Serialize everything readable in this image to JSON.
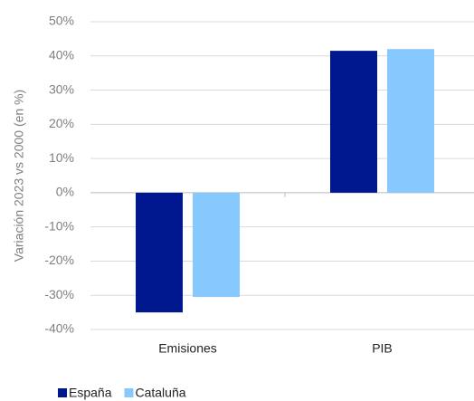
{
  "chart_data": {
    "type": "bar",
    "y_label": "Variación  2023 vs 2000 (en %)",
    "categories": [
      "Emisiones",
      "PIB"
    ],
    "series": [
      {
        "name": "España",
        "color": "#00188f",
        "values": [
          -35,
          41.5
        ]
      },
      {
        "name": "Cataluña",
        "color": "#87c8ff",
        "values": [
          -30.5,
          42
        ]
      }
    ],
    "ylim": [
      -40,
      50
    ],
    "yticks": [
      {
        "value": -40,
        "label": "-40%"
      },
      {
        "value": -30,
        "label": "-30%"
      },
      {
        "value": -20,
        "label": "-20%"
      },
      {
        "value": -10,
        "label": "-10%"
      },
      {
        "value": 0,
        "label": "0%"
      },
      {
        "value": 10,
        "label": "10%"
      },
      {
        "value": 20,
        "label": "20%"
      },
      {
        "value": 30,
        "label": "30%"
      },
      {
        "value": 40,
        "label": "40%"
      },
      {
        "value": 50,
        "label": "50%"
      }
    ],
    "grid": true
  }
}
